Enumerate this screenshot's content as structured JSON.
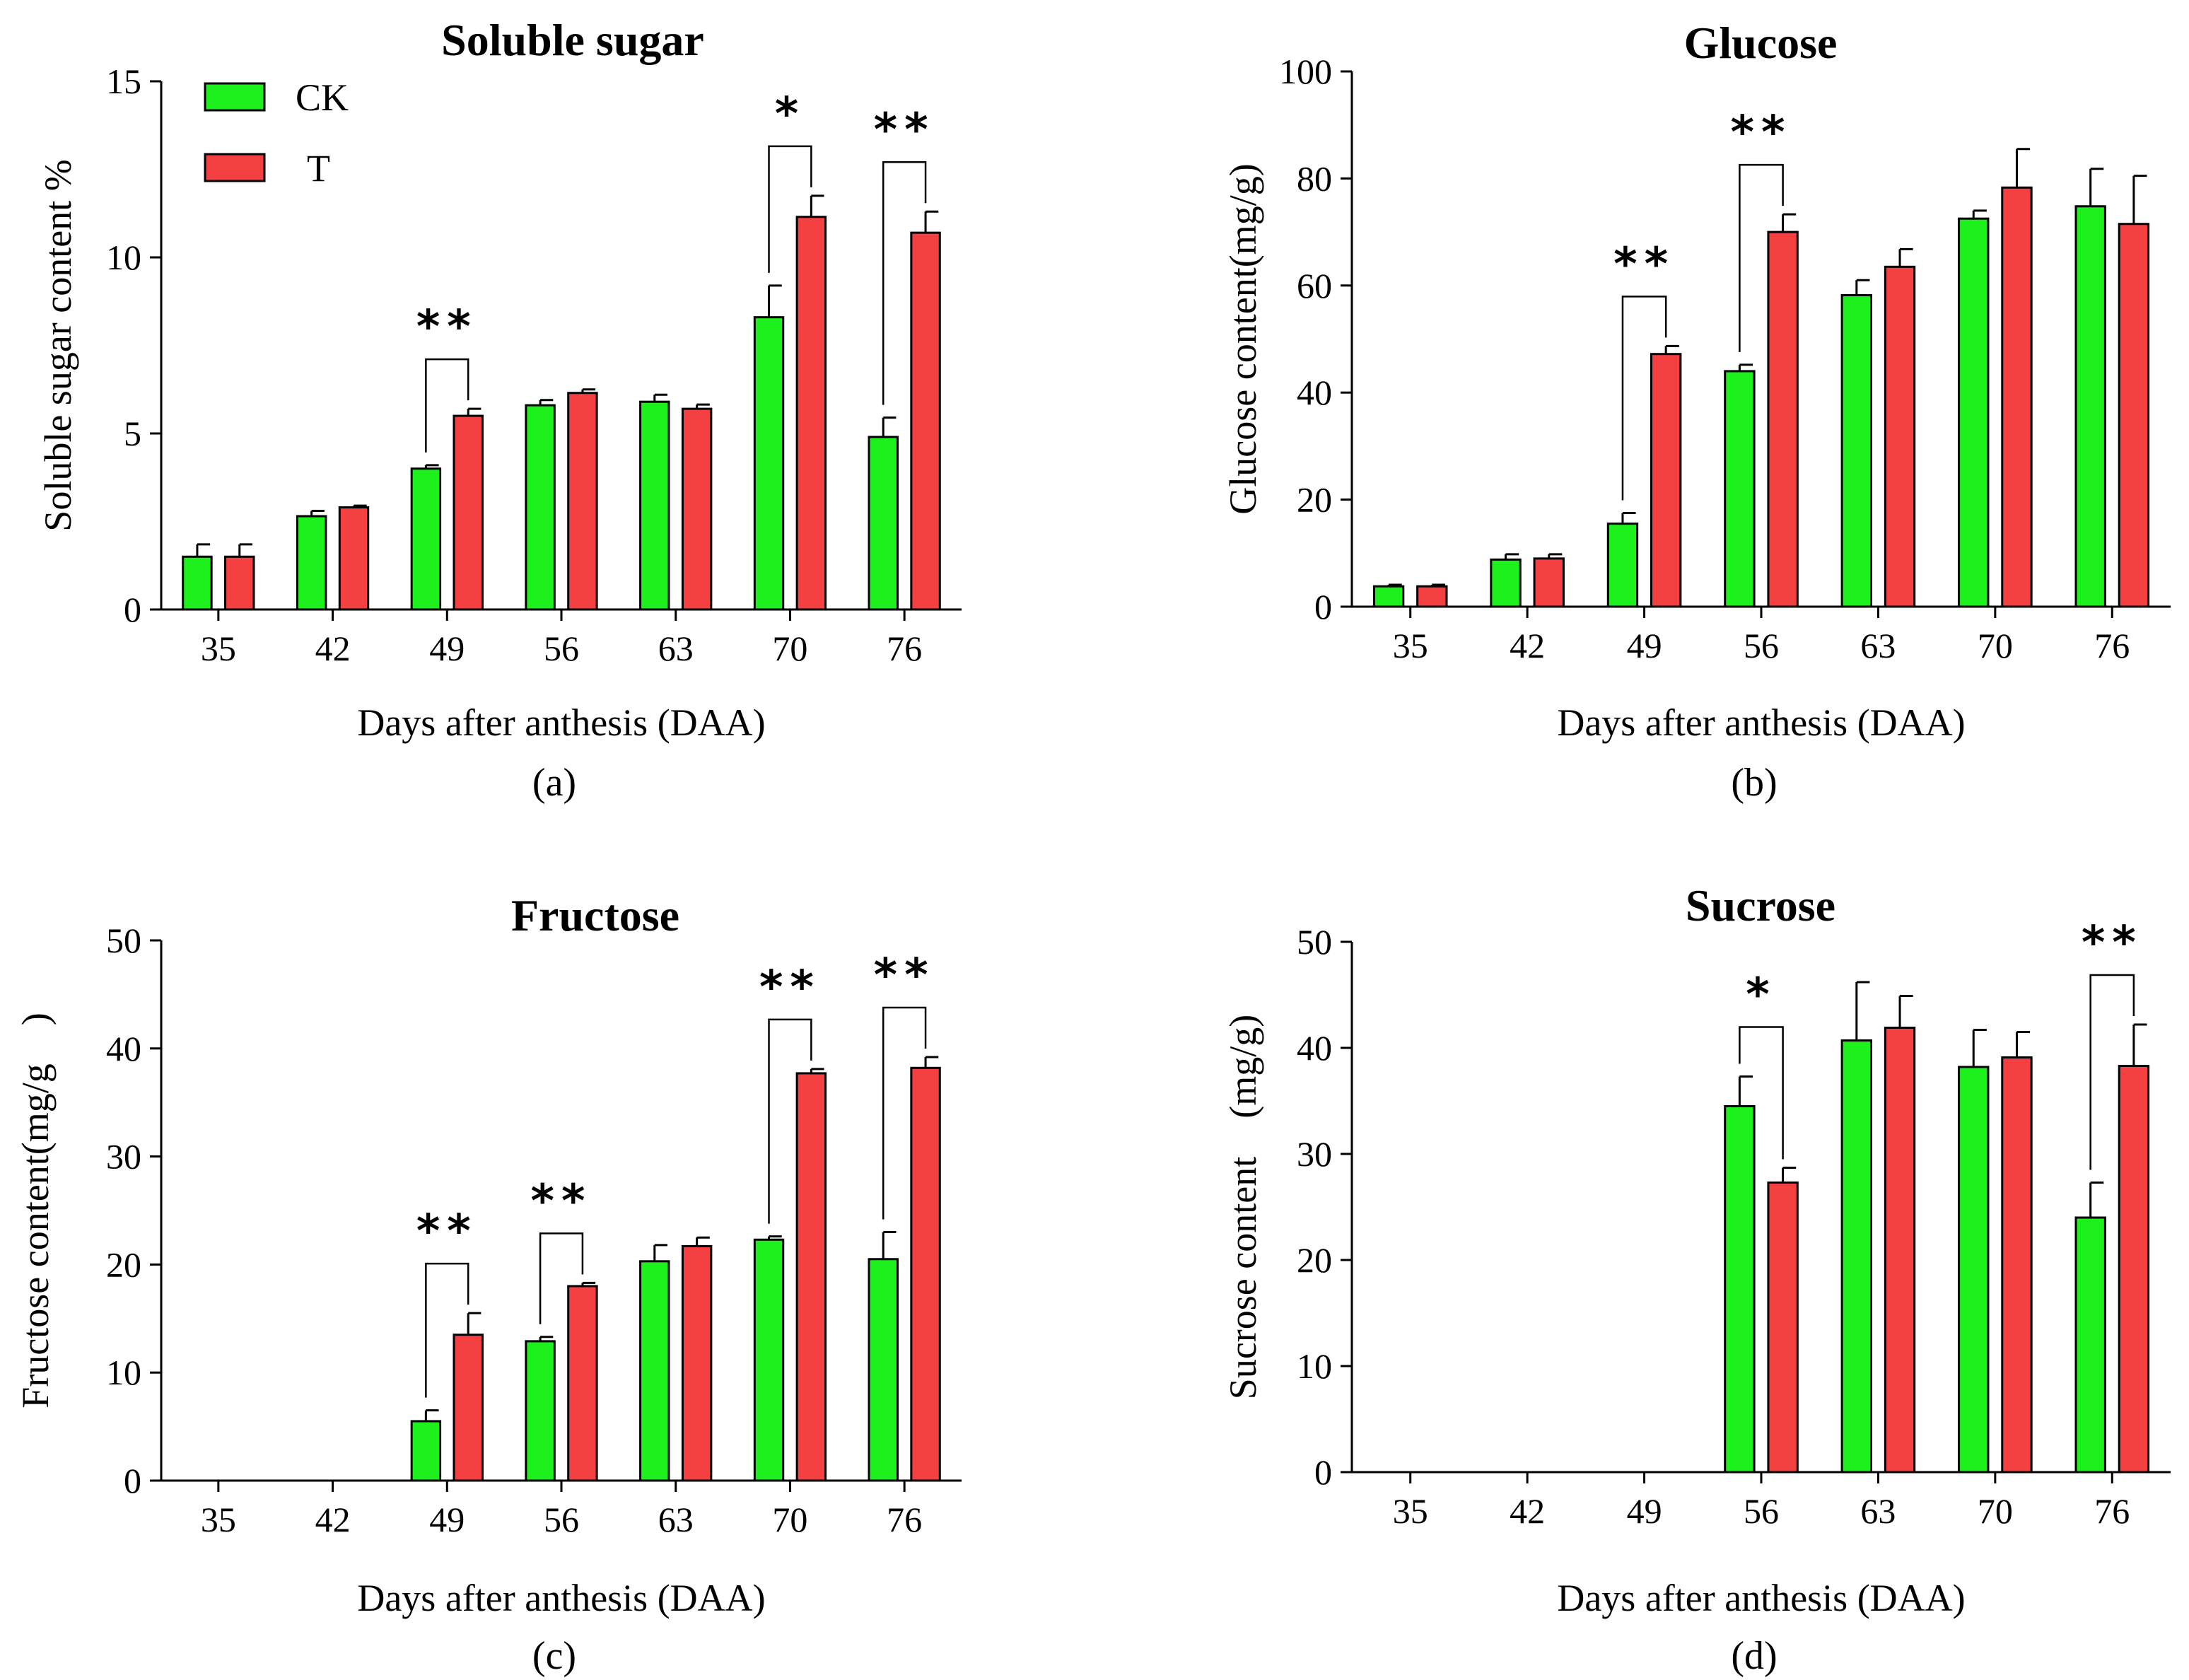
{
  "colors": {
    "ck": "#1ef01e",
    "t": "#f44040",
    "stroke": "#000000"
  },
  "legend": {
    "ck": "CK",
    "t": "T"
  },
  "chart_data": [
    {
      "type": "bar",
      "title": "Soluble sugar",
      "panel_label": "(a)",
      "xlabel": "Days after anthesis (DAA)",
      "ylabel": "Soluble sugar content  %",
      "ylim": [
        0,
        15
      ],
      "yticks": [
        0,
        5,
        10,
        15
      ],
      "categories": [
        "35",
        "42",
        "49",
        "56",
        "63",
        "70",
        "76"
      ],
      "series": [
        {
          "name": "CK",
          "values": [
            1.5,
            2.65,
            4.0,
            5.8,
            5.9,
            8.3,
            4.9
          ],
          "errors": [
            0.35,
            0.15,
            0.1,
            0.15,
            0.2,
            0.9,
            0.55
          ]
        },
        {
          "name": "T",
          "values": [
            1.5,
            2.9,
            5.5,
            6.15,
            5.7,
            11.15,
            10.7
          ],
          "errors": [
            0.35,
            0.05,
            0.2,
            0.1,
            0.12,
            0.6,
            0.6
          ]
        }
      ],
      "significance": [
        {
          "category": "49",
          "label": "**"
        },
        {
          "category": "70",
          "label": "*"
        },
        {
          "category": "76",
          "label": "**"
        }
      ]
    },
    {
      "type": "bar",
      "title": "Glucose",
      "panel_label": "(b)",
      "xlabel": "Days after anthesis (DAA)",
      "ylabel": "Glucose content(mg/g)",
      "ylim": [
        0,
        100
      ],
      "yticks": [
        0,
        20,
        40,
        60,
        80,
        100
      ],
      "categories": [
        "35",
        "42",
        "49",
        "56",
        "63",
        "70",
        "76"
      ],
      "series": [
        {
          "name": "CK",
          "values": [
            3.8,
            8.8,
            15.5,
            44.0,
            58.2,
            72.5,
            74.8
          ],
          "errors": [
            0.3,
            1.0,
            2.0,
            1.2,
            2.8,
            1.5,
            7.0
          ]
        },
        {
          "name": "T",
          "values": [
            3.8,
            9.0,
            47.2,
            70.0,
            63.5,
            78.3,
            71.5
          ],
          "errors": [
            0.3,
            0.8,
            1.5,
            3.3,
            3.3,
            7.2,
            9.0
          ]
        }
      ],
      "significance": [
        {
          "category": "49",
          "label": "**"
        },
        {
          "category": "56",
          "label": "**"
        }
      ]
    },
    {
      "type": "bar",
      "title": "Fructose",
      "panel_label": "(c)",
      "xlabel": "Days after anthesis (DAA)",
      "ylabel": "Fructose content(mg/g　)",
      "ylim": [
        0,
        50
      ],
      "yticks": [
        0,
        10,
        20,
        30,
        40,
        50
      ],
      "categories": [
        "35",
        "42",
        "49",
        "56",
        "63",
        "70",
        "76"
      ],
      "series": [
        {
          "name": "CK",
          "values": [
            null,
            null,
            5.5,
            12.9,
            20.3,
            22.3,
            20.5
          ],
          "errors": [
            0,
            0,
            1.0,
            0.4,
            1.5,
            0.3,
            2.5
          ]
        },
        {
          "name": "T",
          "values": [
            null,
            null,
            13.5,
            18.0,
            21.7,
            37.7,
            38.2
          ],
          "errors": [
            0,
            0,
            2.0,
            0.3,
            0.8,
            0.4,
            1.0
          ]
        }
      ],
      "significance": [
        {
          "category": "49",
          "label": "**"
        },
        {
          "category": "56",
          "label": "**"
        },
        {
          "category": "70",
          "label": "**"
        },
        {
          "category": "76",
          "label": "**"
        }
      ]
    },
    {
      "type": "bar",
      "title": "Sucrose",
      "panel_label": "(d)",
      "xlabel": "Days after anthesis (DAA)",
      "ylabel": "Sucrose content　(mg/g)",
      "ylim": [
        0,
        50
      ],
      "yticks": [
        0,
        10,
        20,
        30,
        40,
        50
      ],
      "categories": [
        "35",
        "42",
        "49",
        "56",
        "63",
        "70",
        "76"
      ],
      "series": [
        {
          "name": "CK",
          "values": [
            null,
            null,
            null,
            34.5,
            40.7,
            38.2,
            24.0
          ],
          "errors": [
            0,
            0,
            0,
            2.8,
            5.5,
            3.5,
            3.3
          ]
        },
        {
          "name": "T",
          "values": [
            null,
            null,
            null,
            27.3,
            41.9,
            39.1,
            38.3
          ],
          "errors": [
            0,
            0,
            0,
            1.4,
            3.0,
            2.4,
            3.9
          ]
        }
      ],
      "significance": [
        {
          "category": "56",
          "label": "*"
        },
        {
          "category": "76",
          "label": "**"
        }
      ]
    }
  ]
}
